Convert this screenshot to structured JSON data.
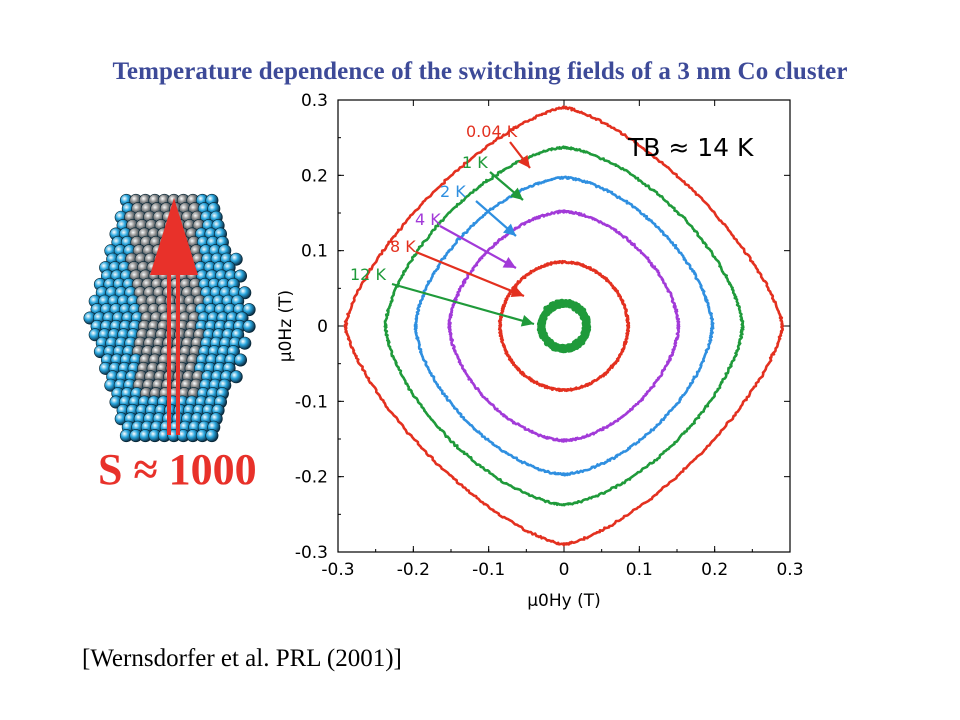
{
  "title": "Temperature dependence of the switching fields of a 3 nm Co cluster",
  "citation": "[Wernsdorfer et al. PRL (2001)]",
  "cluster": {
    "spin_label": "S ≈ 1000",
    "atom_colors": {
      "surface": "#2aa8e0",
      "core": "#8a8a8a"
    },
    "arrow_color": "#e8312a"
  },
  "chart_data": {
    "type": "line",
    "title": "",
    "xlabel": "μ0Hy (T)",
    "ylabel": "μ0Hz (T)",
    "xlim": [
      -0.3,
      0.3
    ],
    "ylim": [
      -0.3,
      0.3
    ],
    "xticks": [
      "-0.3",
      "-0.2",
      "-0.1",
      "0",
      "0.1",
      "0.2",
      "0.3"
    ],
    "yticks": [
      "0.3",
      "0.2",
      "0.1",
      "0",
      "-0.1",
      "-0.2",
      "-0.3"
    ],
    "annotation": "TB ≈ 14 K",
    "grid": false,
    "series": [
      {
        "name": "0.04 K",
        "color": "#e3301f",
        "hk": 0.29,
        "exponent": 1.45
      },
      {
        "name": "1 K",
        "color": "#1f9a3a",
        "hk": 0.237,
        "exponent": 1.3
      },
      {
        "name": "2 K",
        "color": "#2f8fe0",
        "hk": 0.197,
        "exponent": 1.25
      },
      {
        "name": "4 K",
        "color": "#a23ad8",
        "hk": 0.152,
        "exponent": 1.2
      },
      {
        "name": "8 K",
        "color": "#e3301f",
        "hk": 0.085,
        "exponent": 1.05
      },
      {
        "name": "12 K",
        "color": "#1f9a3a",
        "hk": 0.03,
        "exponent": 1.0
      }
    ]
  }
}
